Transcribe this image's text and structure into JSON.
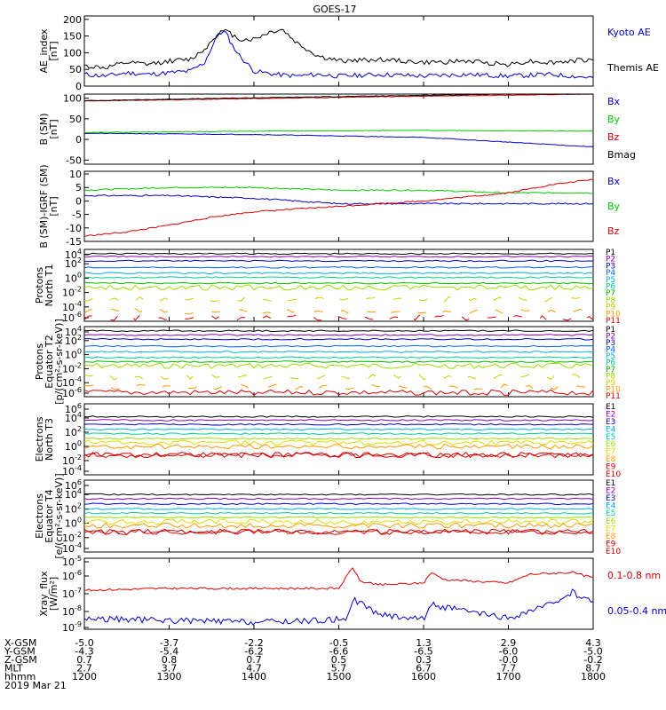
{
  "title": "GOES-17",
  "date": "2019 Mar 21",
  "colors": {
    "black": "#000000",
    "blue": "#0000cc",
    "green": "#00cc00",
    "red": "#dd0000"
  },
  "chart_data": [
    {
      "type": "line",
      "ylabel": "AE_index [nT]",
      "yticks": [
        "200",
        "150",
        "100",
        "50",
        "0"
      ],
      "ylim": [
        0,
        210
      ],
      "series": [
        {
          "name": "Kyoto AE",
          "color": "#0000cc",
          "x": [
            1200,
            1215,
            1230,
            1245,
            1300,
            1315,
            1325,
            1335,
            1340,
            1345,
            1350,
            1400,
            1415,
            1430,
            1445,
            1500,
            1530,
            1600,
            1630,
            1700,
            1730,
            1800
          ],
          "values": [
            35,
            30,
            40,
            35,
            40,
            45,
            70,
            160,
            160,
            120,
            90,
            45,
            35,
            30,
            35,
            30,
            35,
            30,
            35,
            30,
            35,
            25
          ]
        },
        {
          "name": "Themis AE",
          "color": "#000000",
          "x": [
            1200,
            1215,
            1230,
            1245,
            1300,
            1315,
            1325,
            1335,
            1340,
            1350,
            1400,
            1410,
            1420,
            1430,
            1445,
            1500,
            1530,
            1600,
            1630,
            1700,
            1715,
            1730,
            1800
          ],
          "values": [
            60,
            55,
            70,
            65,
            75,
            80,
            110,
            160,
            165,
            140,
            140,
            160,
            170,
            130,
            90,
            75,
            80,
            70,
            75,
            65,
            75,
            70,
            80
          ]
        }
      ],
      "legend": [
        "Kyoto AE",
        "Themis AE"
      ]
    },
    {
      "type": "line",
      "ylabel": "B (SM) [nT]",
      "yticks": [
        "100",
        "50",
        "0",
        "-50"
      ],
      "ylim": [
        -60,
        110
      ],
      "series": [
        {
          "name": "Bx",
          "color": "#0000cc",
          "x": [
            1200,
            1400,
            1600,
            1800
          ],
          "values": [
            15,
            12,
            5,
            -18
          ]
        },
        {
          "name": "By",
          "color": "#00cc00",
          "x": [
            1200,
            1400,
            1600,
            1800
          ],
          "values": [
            17,
            20,
            22,
            20
          ]
        },
        {
          "name": "Bz",
          "color": "#dd0000",
          "x": [
            1200,
            1400,
            1600,
            1800
          ],
          "values": [
            93,
            99,
            105,
            110
          ]
        },
        {
          "name": "Bmag",
          "color": "#000000",
          "x": [
            1200,
            1400,
            1600,
            1800
          ],
          "values": [
            94,
            101,
            107,
            113
          ]
        }
      ],
      "legend": [
        "Bx",
        "By",
        "Bz",
        "Bmag"
      ]
    },
    {
      "type": "line",
      "ylabel": "B (SM)-IGRF (SM) [nT]",
      "yticks": [
        "10",
        "5",
        "0",
        "-5",
        "-10",
        "-15"
      ],
      "ylim": [
        -15,
        11
      ],
      "series": [
        {
          "name": "Bx",
          "color": "#0000cc",
          "x": [
            1200,
            1300,
            1400,
            1500,
            1600,
            1700,
            1800
          ],
          "values": [
            2,
            2,
            1,
            -1,
            -1,
            -1,
            -1
          ]
        },
        {
          "name": "By",
          "color": "#00cc00",
          "x": [
            1200,
            1300,
            1400,
            1500,
            1600,
            1700,
            1800
          ],
          "values": [
            4,
            5,
            5,
            4,
            4,
            3,
            3
          ]
        },
        {
          "name": "Bz",
          "color": "#dd0000",
          "x": [
            1200,
            1230,
            1300,
            1330,
            1400,
            1500,
            1600,
            1700,
            1730,
            1800
          ],
          "values": [
            -13,
            -11.5,
            -9,
            -6,
            -4,
            -2,
            0,
            3,
            6,
            8
          ]
        }
      ],
      "legend": [
        "Bx",
        "By",
        "Bz"
      ]
    },
    {
      "type": "line",
      "ylabel": "Protons North T1",
      "yticks": [
        "10^4",
        "10^2",
        "10^0",
        "10^-2",
        "10^-4",
        "10^-6"
      ],
      "channels": [
        "P1",
        "P2",
        "P3",
        "P4",
        "P5",
        "P6",
        "P7",
        "P8",
        "P9",
        "P10",
        "P11"
      ]
    },
    {
      "type": "line",
      "ylabel": "Protons Equator T2 [p/(cm²-s-sr-keV)]",
      "yticks": [
        "10^4",
        "10^2",
        "10^0",
        "10^-2",
        "10^-4",
        "10^-6"
      ],
      "channels": [
        "P1",
        "P2",
        "P3",
        "P4",
        "P5",
        "P6",
        "P7",
        "P8",
        "P9",
        "P10",
        "P11"
      ]
    },
    {
      "type": "line",
      "ylabel": "Electrons North T3",
      "yticks": [
        "10^6",
        "10^4",
        "10^2",
        "10^0",
        "10^-2",
        "10^-4"
      ],
      "channels": [
        "E1",
        "E2",
        "E3",
        "E4",
        "E5",
        "E6",
        "E7",
        "E8",
        "E9",
        "E10"
      ]
    },
    {
      "type": "line",
      "ylabel": "Electrons Equator T4 [e/(cm²-s-sr-keV)]",
      "yticks": [
        "10^6",
        "10^4",
        "10^2",
        "10^0",
        "10^-2",
        "10^-4"
      ],
      "channels": [
        "E1",
        "E2",
        "E3",
        "E4",
        "E5",
        "E6",
        "E7",
        "E8",
        "E9",
        "E10"
      ]
    },
    {
      "type": "line",
      "ylabel": "Xray_flux [W/m²]",
      "yticks": [
        "10^-5",
        "10^-6",
        "10^-7",
        "10^-8",
        "10^-9"
      ],
      "series": [
        {
          "name": "0.1-0.8 nm",
          "color": "#dd0000",
          "x": [
            1200,
            1300,
            1400,
            1500,
            1510,
            1515,
            1530,
            1600,
            1605,
            1615,
            1700,
            1715,
            1745,
            1800
          ],
          "values": [
            -6.8,
            -6.7,
            -6.7,
            -6.7,
            -5.5,
            -6.3,
            -6.5,
            -6.4,
            -5.8,
            -6.2,
            -6.4,
            -5.9,
            -5.8,
            -6.1
          ]
        },
        {
          "name": "0.05-0.4 nm",
          "color": "#0000cc",
          "x": [
            1200,
            1300,
            1400,
            1450,
            1505,
            1510,
            1530,
            1600,
            1605,
            1630,
            1700,
            1730,
            1745,
            1800
          ],
          "values": [
            -8.4,
            -8.5,
            -8.6,
            -8.5,
            -8.4,
            -7.3,
            -8.2,
            -8.4,
            -7.6,
            -8.0,
            -8.4,
            -7.6,
            -6.9,
            -7.5
          ]
        }
      ],
      "legend": [
        "0.1-0.8 nm",
        "0.05-0.4 nm"
      ]
    }
  ],
  "xaxis": {
    "rows": [
      {
        "label": "X-GSM",
        "values": [
          "-5.0",
          "-3.7",
          "-2.2",
          "-0.5",
          "1.3",
          "2.9",
          "4.3"
        ]
      },
      {
        "label": "Y-GSM",
        "values": [
          "-4.3",
          "-5.4",
          "-6.2",
          "-6.6",
          "-6.5",
          "-6.0",
          "-5.0"
        ]
      },
      {
        "label": "Z-GSM",
        "values": [
          "0.7",
          "0.8",
          "0.7",
          "0.5",
          "0.3",
          "-0.0",
          "-0.2"
        ]
      },
      {
        "label": "MLT",
        "values": [
          "2.7",
          "3.7",
          "4.7",
          "5.7",
          "6.7",
          "7.7",
          "8.7"
        ]
      },
      {
        "label": "hhmm",
        "values": [
          "1200",
          "1300",
          "1400",
          "1500",
          "1600",
          "1700",
          "1800"
        ]
      }
    ]
  }
}
